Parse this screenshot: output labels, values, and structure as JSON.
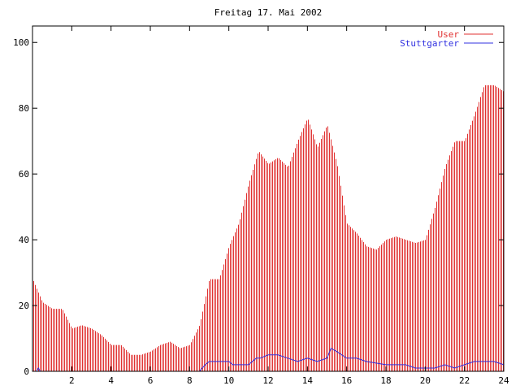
{
  "chart_data": {
    "type": "bar",
    "title": "Freitag 17. Mai 2002",
    "xlabel": "",
    "ylabel": "",
    "xlim": [
      0,
      24
    ],
    "ylim": [
      0,
      105
    ],
    "xticks": [
      "2",
      "4",
      "6",
      "8",
      "10",
      "12",
      "14",
      "16",
      "18",
      "20",
      "22",
      "24"
    ],
    "yticks": [
      "0",
      "20",
      "40",
      "60",
      "80",
      "100"
    ],
    "grid": false,
    "legend_position": "top-right",
    "series": [
      {
        "name": "User",
        "style": "impulses",
        "color": "#e03030",
        "x": [
          0,
          0.5,
          1,
          1.5,
          2,
          2.5,
          3,
          3.5,
          4,
          4.5,
          5,
          5.5,
          6,
          6.5,
          7,
          7.5,
          8,
          8.5,
          9,
          9.5,
          10,
          10.5,
          11,
          11.5,
          12,
          12.5,
          13,
          13.5,
          14,
          14.5,
          15,
          15.5,
          16,
          16.5,
          17,
          17.5,
          18,
          18.5,
          19,
          19.5,
          20,
          20.5,
          21,
          21.5,
          22,
          22.5,
          23,
          23.5,
          24
        ],
        "values": [
          28,
          21,
          19,
          19,
          13,
          14,
          13,
          11,
          8,
          8,
          5,
          5,
          6,
          8,
          9,
          7,
          8,
          14,
          28,
          28,
          38,
          45,
          57,
          67,
          63,
          65,
          62,
          70,
          77,
          68,
          75,
          63,
          45,
          42,
          38,
          37,
          40,
          41,
          40,
          39,
          40,
          50,
          62,
          70,
          70,
          78,
          87,
          87,
          85
        ]
      },
      {
        "name": "Stuttgarter",
        "style": "line",
        "color": "#3030e0",
        "x": [
          0,
          0.2,
          0.3,
          0.4,
          1,
          2,
          3,
          4,
          5,
          6,
          7,
          8,
          8.5,
          8.8,
          9,
          10,
          10.2,
          11,
          11.4,
          11.6,
          12,
          12.5,
          13,
          13.5,
          14,
          14.5,
          15,
          15.2,
          15.5,
          16,
          16.5,
          17,
          18,
          19,
          19.5,
          20,
          20.5,
          21,
          21.5,
          22,
          22.5,
          23,
          23.5,
          24
        ],
        "values": [
          0,
          0,
          1,
          0,
          0,
          0,
          0,
          0,
          0,
          0,
          0,
          0,
          0,
          2,
          3,
          3,
          2,
          2,
          4,
          4,
          5,
          5,
          4,
          3,
          4,
          3,
          4,
          7,
          6,
          4,
          4,
          3,
          2,
          2,
          1,
          1,
          1,
          2,
          1,
          2,
          3,
          3,
          3,
          2
        ]
      }
    ]
  }
}
